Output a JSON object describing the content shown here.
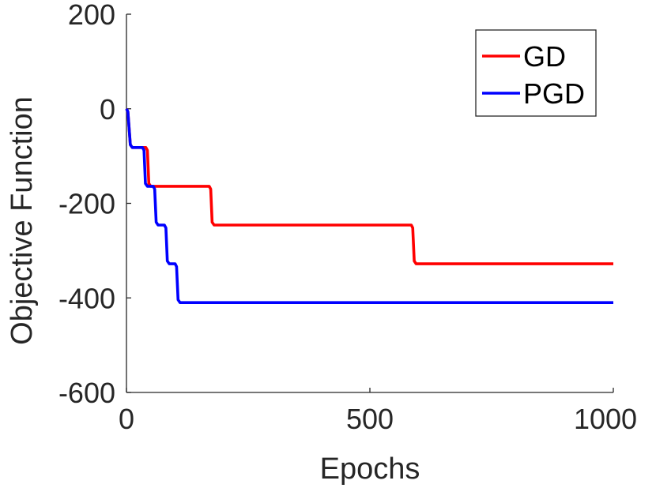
{
  "chart_data": {
    "type": "line",
    "title": "",
    "xlabel": "Epochs",
    "ylabel": "Objective Function",
    "xlim": [
      0,
      1000
    ],
    "ylim": [
      -600,
      200
    ],
    "xticks": [
      0,
      500,
      1000
    ],
    "yticks": [
      200,
      0,
      -200,
      -400,
      -600
    ],
    "xtick_labels": [
      "0",
      "500",
      "1000"
    ],
    "ytick_labels": [
      "200",
      "0",
      "-200",
      "-400",
      "-600"
    ],
    "grid": false,
    "legend_position": "top-right",
    "series": [
      {
        "name": "GD",
        "color": "#ff0000",
        "x": [
          0,
          3,
          8,
          12,
          40,
          43,
          46,
          50,
          170,
          173,
          176,
          180,
          585,
          588,
          591,
          595,
          1000
        ],
        "y": [
          0,
          -6,
          -76,
          -82,
          -82,
          -88,
          -158,
          -164,
          -164,
          -170,
          -240,
          -246,
          -246,
          -252,
          -322,
          -328,
          -328
        ]
      },
      {
        "name": "PGD",
        "color": "#0000ff",
        "x": [
          0,
          3,
          8,
          12,
          33,
          36,
          39,
          43,
          55,
          58,
          61,
          65,
          78,
          81,
          84,
          88,
          100,
          103,
          106,
          110,
          1000
        ],
        "y": [
          0,
          -6,
          -76,
          -82,
          -82,
          -88,
          -158,
          -164,
          -164,
          -170,
          -240,
          -246,
          -246,
          -252,
          -322,
          -328,
          -328,
          -334,
          -404,
          -410,
          -410
        ]
      }
    ]
  }
}
